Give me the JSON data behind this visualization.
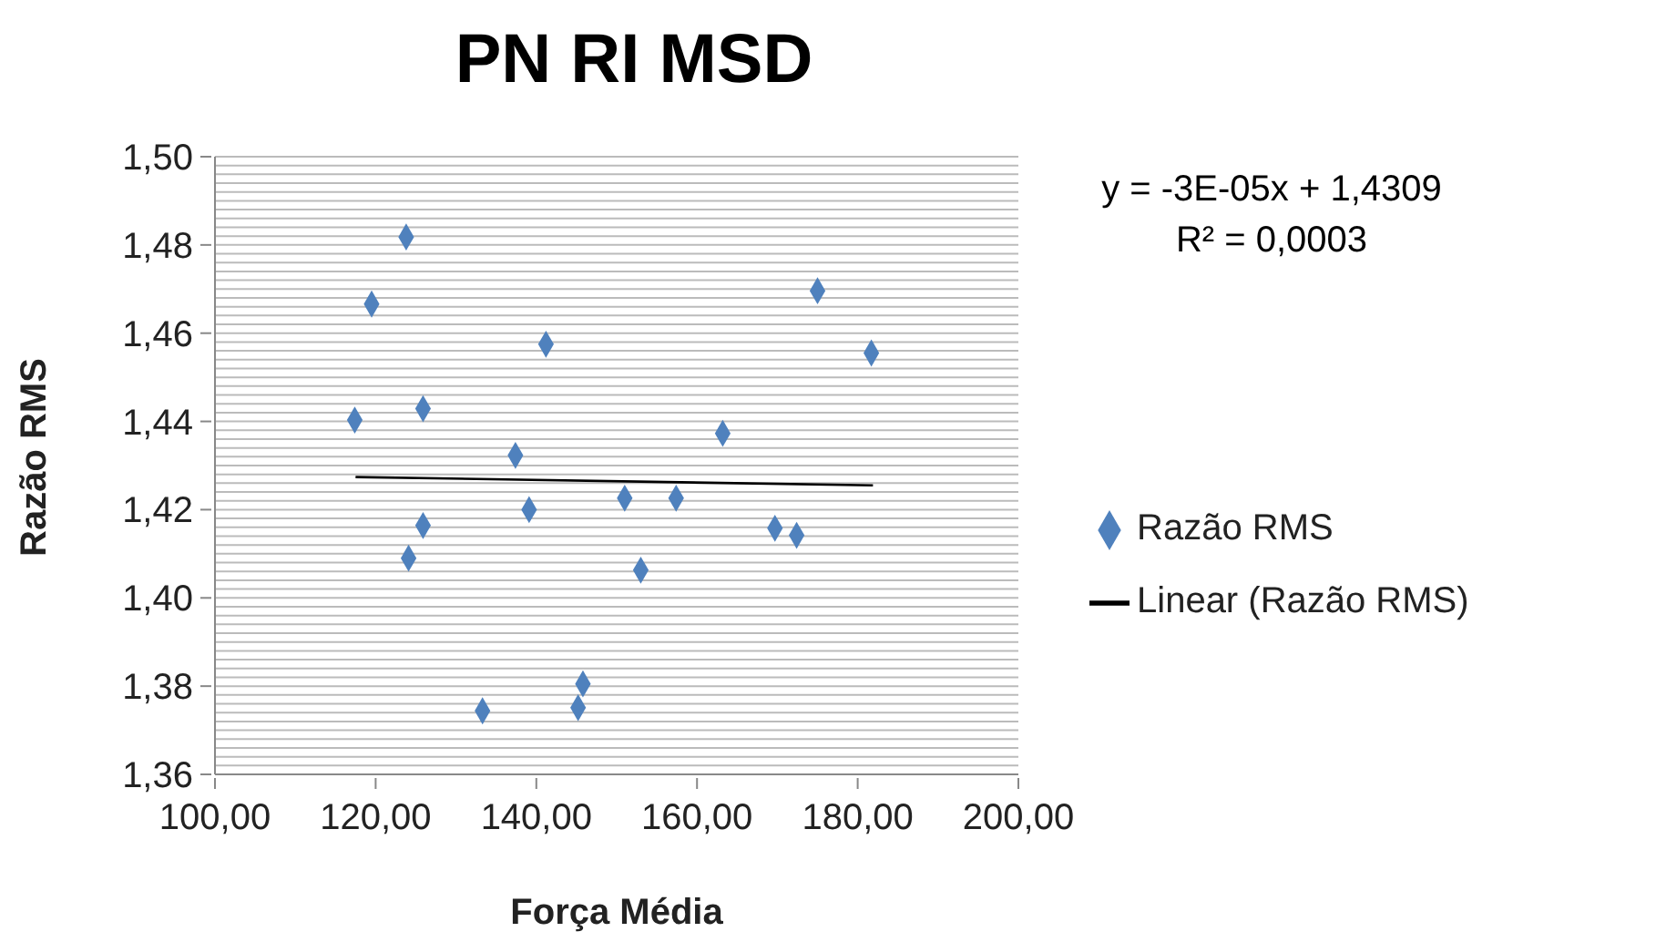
{
  "chart_data": {
    "type": "scatter",
    "title": "PN RI MSD",
    "xlabel": "Força Média",
    "ylabel": "Razão RMS",
    "annotations": [
      "y = -3E-05x + 1,4309",
      "R² = 0,0003"
    ],
    "series": [
      {
        "name": "Razão RMS",
        "color": "#4f81bd",
        "marker": "diamond",
        "x": [
          117.4,
          119.5,
          123.8,
          125.9,
          141.2,
          137.4,
          125.9,
          124.1,
          139.1,
          133.3,
          145.8,
          145.2,
          151.0,
          153.0,
          157.4,
          163.2,
          169.7,
          172.4,
          175.0,
          181.7
        ],
        "values": [
          1.4403,
          1.4666,
          1.4818,
          1.4429,
          1.4575,
          1.4323,
          1.4164,
          1.409,
          1.42,
          1.3744,
          1.3805,
          1.3751,
          1.4226,
          1.4063,
          1.4226,
          1.4373,
          1.4158,
          1.4142,
          1.4696,
          1.4555
        ]
      },
      {
        "name": "Linear (Razão RMS)",
        "type": "line",
        "color": "#000000",
        "marker": "none",
        "line_style": "solid",
        "x": [
          117.5,
          181.9
        ],
        "values": [
          1.4274,
          1.4255
        ]
      }
    ],
    "xlim": [
      100,
      200
    ],
    "xticks": [
      {
        "value": 100,
        "label": "100,00"
      },
      {
        "value": 120,
        "label": "120,00"
      },
      {
        "value": 140,
        "label": "140,00"
      },
      {
        "value": 160,
        "label": "160,00"
      },
      {
        "value": 180,
        "label": "180,00"
      },
      {
        "value": 200,
        "label": "200,00"
      }
    ],
    "ylim": [
      1.36,
      1.5
    ],
    "yticks": [
      {
        "value": 1.36,
        "label": "1,36"
      },
      {
        "value": 1.362,
        "label": null
      },
      {
        "value": 1.364,
        "label": null
      },
      {
        "value": 1.366,
        "label": null
      },
      {
        "value": 1.368,
        "label": null
      },
      {
        "value": 1.37,
        "label": null
      },
      {
        "value": 1.372,
        "label": null
      },
      {
        "value": 1.374,
        "label": null
      },
      {
        "value": 1.376,
        "label": null
      },
      {
        "value": 1.378,
        "label": null
      },
      {
        "value": 1.38,
        "label": "1,38"
      },
      {
        "value": 1.382,
        "label": null
      },
      {
        "value": 1.384,
        "label": null
      },
      {
        "value": 1.386,
        "label": null
      },
      {
        "value": 1.388,
        "label": null
      },
      {
        "value": 1.39,
        "label": null
      },
      {
        "value": 1.392,
        "label": null
      },
      {
        "value": 1.394,
        "label": null
      },
      {
        "value": 1.396,
        "label": null
      },
      {
        "value": 1.398,
        "label": null
      },
      {
        "value": 1.4,
        "label": "1,40"
      },
      {
        "value": 1.402,
        "label": null
      },
      {
        "value": 1.404,
        "label": null
      },
      {
        "value": 1.406,
        "label": null
      },
      {
        "value": 1.408,
        "label": null
      },
      {
        "value": 1.41,
        "label": null
      },
      {
        "value": 1.412,
        "label": null
      },
      {
        "value": 1.414,
        "label": null
      },
      {
        "value": 1.416,
        "label": null
      },
      {
        "value": 1.418,
        "label": null
      },
      {
        "value": 1.42,
        "label": "1,42"
      },
      {
        "value": 1.422,
        "label": null
      },
      {
        "value": 1.424,
        "label": null
      },
      {
        "value": 1.426,
        "label": null
      },
      {
        "value": 1.428,
        "label": null
      },
      {
        "value": 1.43,
        "label": null
      },
      {
        "value": 1.432,
        "label": null
      },
      {
        "value": 1.434,
        "label": null
      },
      {
        "value": 1.436,
        "label": null
      },
      {
        "value": 1.438,
        "label": null
      },
      {
        "value": 1.44,
        "label": "1,44"
      },
      {
        "value": 1.442,
        "label": null
      },
      {
        "value": 1.444,
        "label": null
      },
      {
        "value": 1.446,
        "label": null
      },
      {
        "value": 1.448,
        "label": null
      },
      {
        "value": 1.45,
        "label": null
      },
      {
        "value": 1.452,
        "label": null
      },
      {
        "value": 1.454,
        "label": null
      },
      {
        "value": 1.456,
        "label": null
      },
      {
        "value": 1.458,
        "label": null
      },
      {
        "value": 1.46,
        "label": "1,46"
      },
      {
        "value": 1.462,
        "label": null
      },
      {
        "value": 1.464,
        "label": null
      },
      {
        "value": 1.466,
        "label": null
      },
      {
        "value": 1.468,
        "label": null
      },
      {
        "value": 1.47,
        "label": null
      },
      {
        "value": 1.472,
        "label": null
      },
      {
        "value": 1.474,
        "label": null
      },
      {
        "value": 1.476,
        "label": null
      },
      {
        "value": 1.478,
        "label": null
      },
      {
        "value": 1.48,
        "label": "1,48"
      },
      {
        "value": 1.482,
        "label": null
      },
      {
        "value": 1.484,
        "label": null
      },
      {
        "value": 1.486,
        "label": null
      },
      {
        "value": 1.488,
        "label": null
      },
      {
        "value": 1.49,
        "label": null
      },
      {
        "value": 1.492,
        "label": null
      },
      {
        "value": 1.494,
        "label": null
      },
      {
        "value": 1.496,
        "label": null
      },
      {
        "value": 1.498,
        "label": null
      },
      {
        "value": 1.5,
        "label": "1,50"
      }
    ],
    "grid": "y",
    "legend": "right"
  }
}
